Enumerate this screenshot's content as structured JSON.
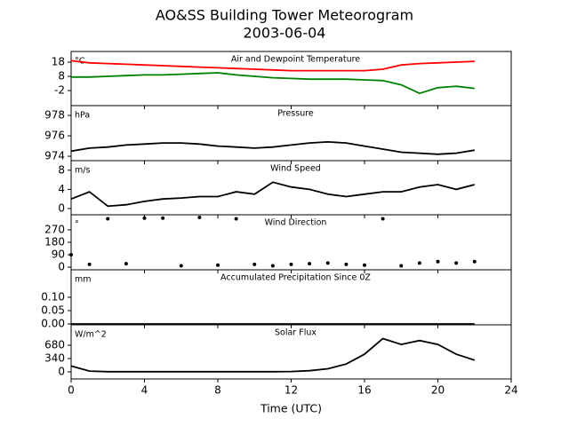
{
  "title": "AO&SS Building Tower Meteorogram",
  "subtitle": "2003-06-04",
  "x_axis": {
    "label": "Time (UTC)",
    "xlim": [
      0,
      24
    ],
    "xticks": [
      0,
      4,
      8,
      12,
      16,
      20,
      24
    ]
  },
  "chart_data": [
    {
      "type": "line",
      "title": "Air and Dewpoint Temperature",
      "units": "°C",
      "x": [
        0,
        1,
        2,
        3,
        4,
        5,
        6,
        7,
        8,
        9,
        10,
        11,
        12,
        13,
        14,
        15,
        16,
        17,
        18,
        19,
        20,
        21,
        22
      ],
      "series": [
        {
          "name": "Temperature",
          "color": "#ff0000",
          "values": [
            19,
            17.5,
            17,
            16.5,
            16,
            15.5,
            15,
            14.5,
            14,
            13.5,
            13,
            12.5,
            12,
            12,
            12,
            12,
            12,
            13,
            16,
            17,
            17.5,
            18,
            18.5
          ]
        },
        {
          "name": "Dewpoint",
          "color": "#008000",
          "values": [
            7.5,
            7.5,
            8,
            8.5,
            9,
            9,
            9.5,
            10,
            10.5,
            9,
            8,
            7,
            6.5,
            6,
            6,
            6,
            5.5,
            5,
            2,
            -4,
            0,
            1,
            -0.5
          ]
        }
      ],
      "ylim": [
        -12.6,
        25.5
      ],
      "yticks": [
        -2,
        8,
        18
      ]
    },
    {
      "type": "line",
      "title": "Pressure",
      "units": "hPa",
      "x": [
        0,
        1,
        2,
        3,
        4,
        5,
        6,
        7,
        8,
        9,
        10,
        11,
        12,
        13,
        14,
        15,
        16,
        17,
        18,
        19,
        20,
        21,
        22
      ],
      "series": [
        {
          "name": "Pressure",
          "color": "#000000",
          "values": [
            974.5,
            974.8,
            974.9,
            975.1,
            975.2,
            975.3,
            975.3,
            975.2,
            975.0,
            974.9,
            974.8,
            974.9,
            975.1,
            975.3,
            975.4,
            975.3,
            975.0,
            974.7,
            974.4,
            974.3,
            974.2,
            974.3,
            974.6
          ]
        }
      ],
      "ylim": [
        973.57,
        978.96
      ],
      "yticks": [
        974,
        976,
        978
      ]
    },
    {
      "type": "line",
      "title": "Wind Speed",
      "units": "m/s",
      "x": [
        0,
        1,
        2,
        3,
        4,
        5,
        6,
        7,
        8,
        9,
        10,
        11,
        12,
        13,
        14,
        15,
        16,
        17,
        18,
        19,
        20,
        21,
        22
      ],
      "series": [
        {
          "name": "Wind Speed",
          "color": "#000000",
          "values": [
            2,
            3.5,
            0.5,
            0.8,
            1.5,
            2,
            2.2,
            2.5,
            2.5,
            3.5,
            3,
            5.5,
            4.5,
            4,
            3,
            2.5,
            3,
            3.5,
            3.5,
            4.5,
            5,
            4,
            5
          ]
        }
      ],
      "ylim": [
        -1.3,
        10
      ],
      "yticks": [
        0,
        4,
        8
      ]
    },
    {
      "type": "scatter",
      "title": "Wind Direction",
      "units": "°",
      "x": [
        0,
        1,
        2,
        3,
        4,
        5,
        6,
        7,
        8,
        9,
        10,
        11,
        12,
        13,
        14,
        15,
        16,
        17,
        18,
        19,
        20,
        21,
        22
      ],
      "series": [
        {
          "name": "Wind Direction",
          "color": "#000000",
          "values": [
            90,
            20,
            350,
            25,
            355,
            355,
            10,
            360,
            15,
            350,
            20,
            10,
            20,
            25,
            30,
            20,
            15,
            350,
            10,
            30,
            40,
            30,
            40
          ]
        }
      ],
      "ylim": [
        -19,
        379
      ],
      "yticks": [
        0,
        90,
        180,
        270
      ]
    },
    {
      "type": "line",
      "title": "Accumulated Precipitation Since 0Z",
      "units": "mm",
      "x": [
        0,
        1,
        2,
        3,
        4,
        5,
        6,
        7,
        8,
        9,
        10,
        11,
        12,
        13,
        14,
        15,
        16,
        17,
        18,
        19,
        20,
        21,
        22
      ],
      "series": [
        {
          "name": "Precipitation",
          "color": "#000000",
          "values": [
            0,
            0,
            0,
            0,
            0,
            0,
            0,
            0,
            0,
            0,
            0,
            0,
            0,
            0,
            0,
            0,
            0,
            0,
            0,
            0,
            0,
            0,
            0
          ]
        }
      ],
      "ylim": [
        -0.0033,
        0.203
      ],
      "yticks": [
        {
          "value": 0,
          "label": "0.00"
        },
        {
          "value": 0.05,
          "label": "0.05"
        },
        {
          "value": 0.1,
          "label": "0.10"
        }
      ]
    },
    {
      "type": "line",
      "title": "Solar Flux",
      "units": "W/m^2",
      "x": [
        0,
        1,
        2,
        3,
        4,
        5,
        6,
        7,
        8,
        9,
        10,
        11,
        12,
        13,
        14,
        15,
        16,
        17,
        18,
        19,
        20,
        21,
        22
      ],
      "series": [
        {
          "name": "Solar Flux",
          "color": "#000000",
          "values": [
            150,
            20,
            5,
            5,
            5,
            5,
            5,
            5,
            5,
            5,
            5,
            5,
            10,
            30,
            80,
            200,
            450,
            850,
            700,
            800,
            700,
            450,
            300
          ]
        }
      ],
      "ylim": [
        -181,
        1201
      ],
      "yticks": [
        0,
        340,
        680
      ]
    }
  ]
}
